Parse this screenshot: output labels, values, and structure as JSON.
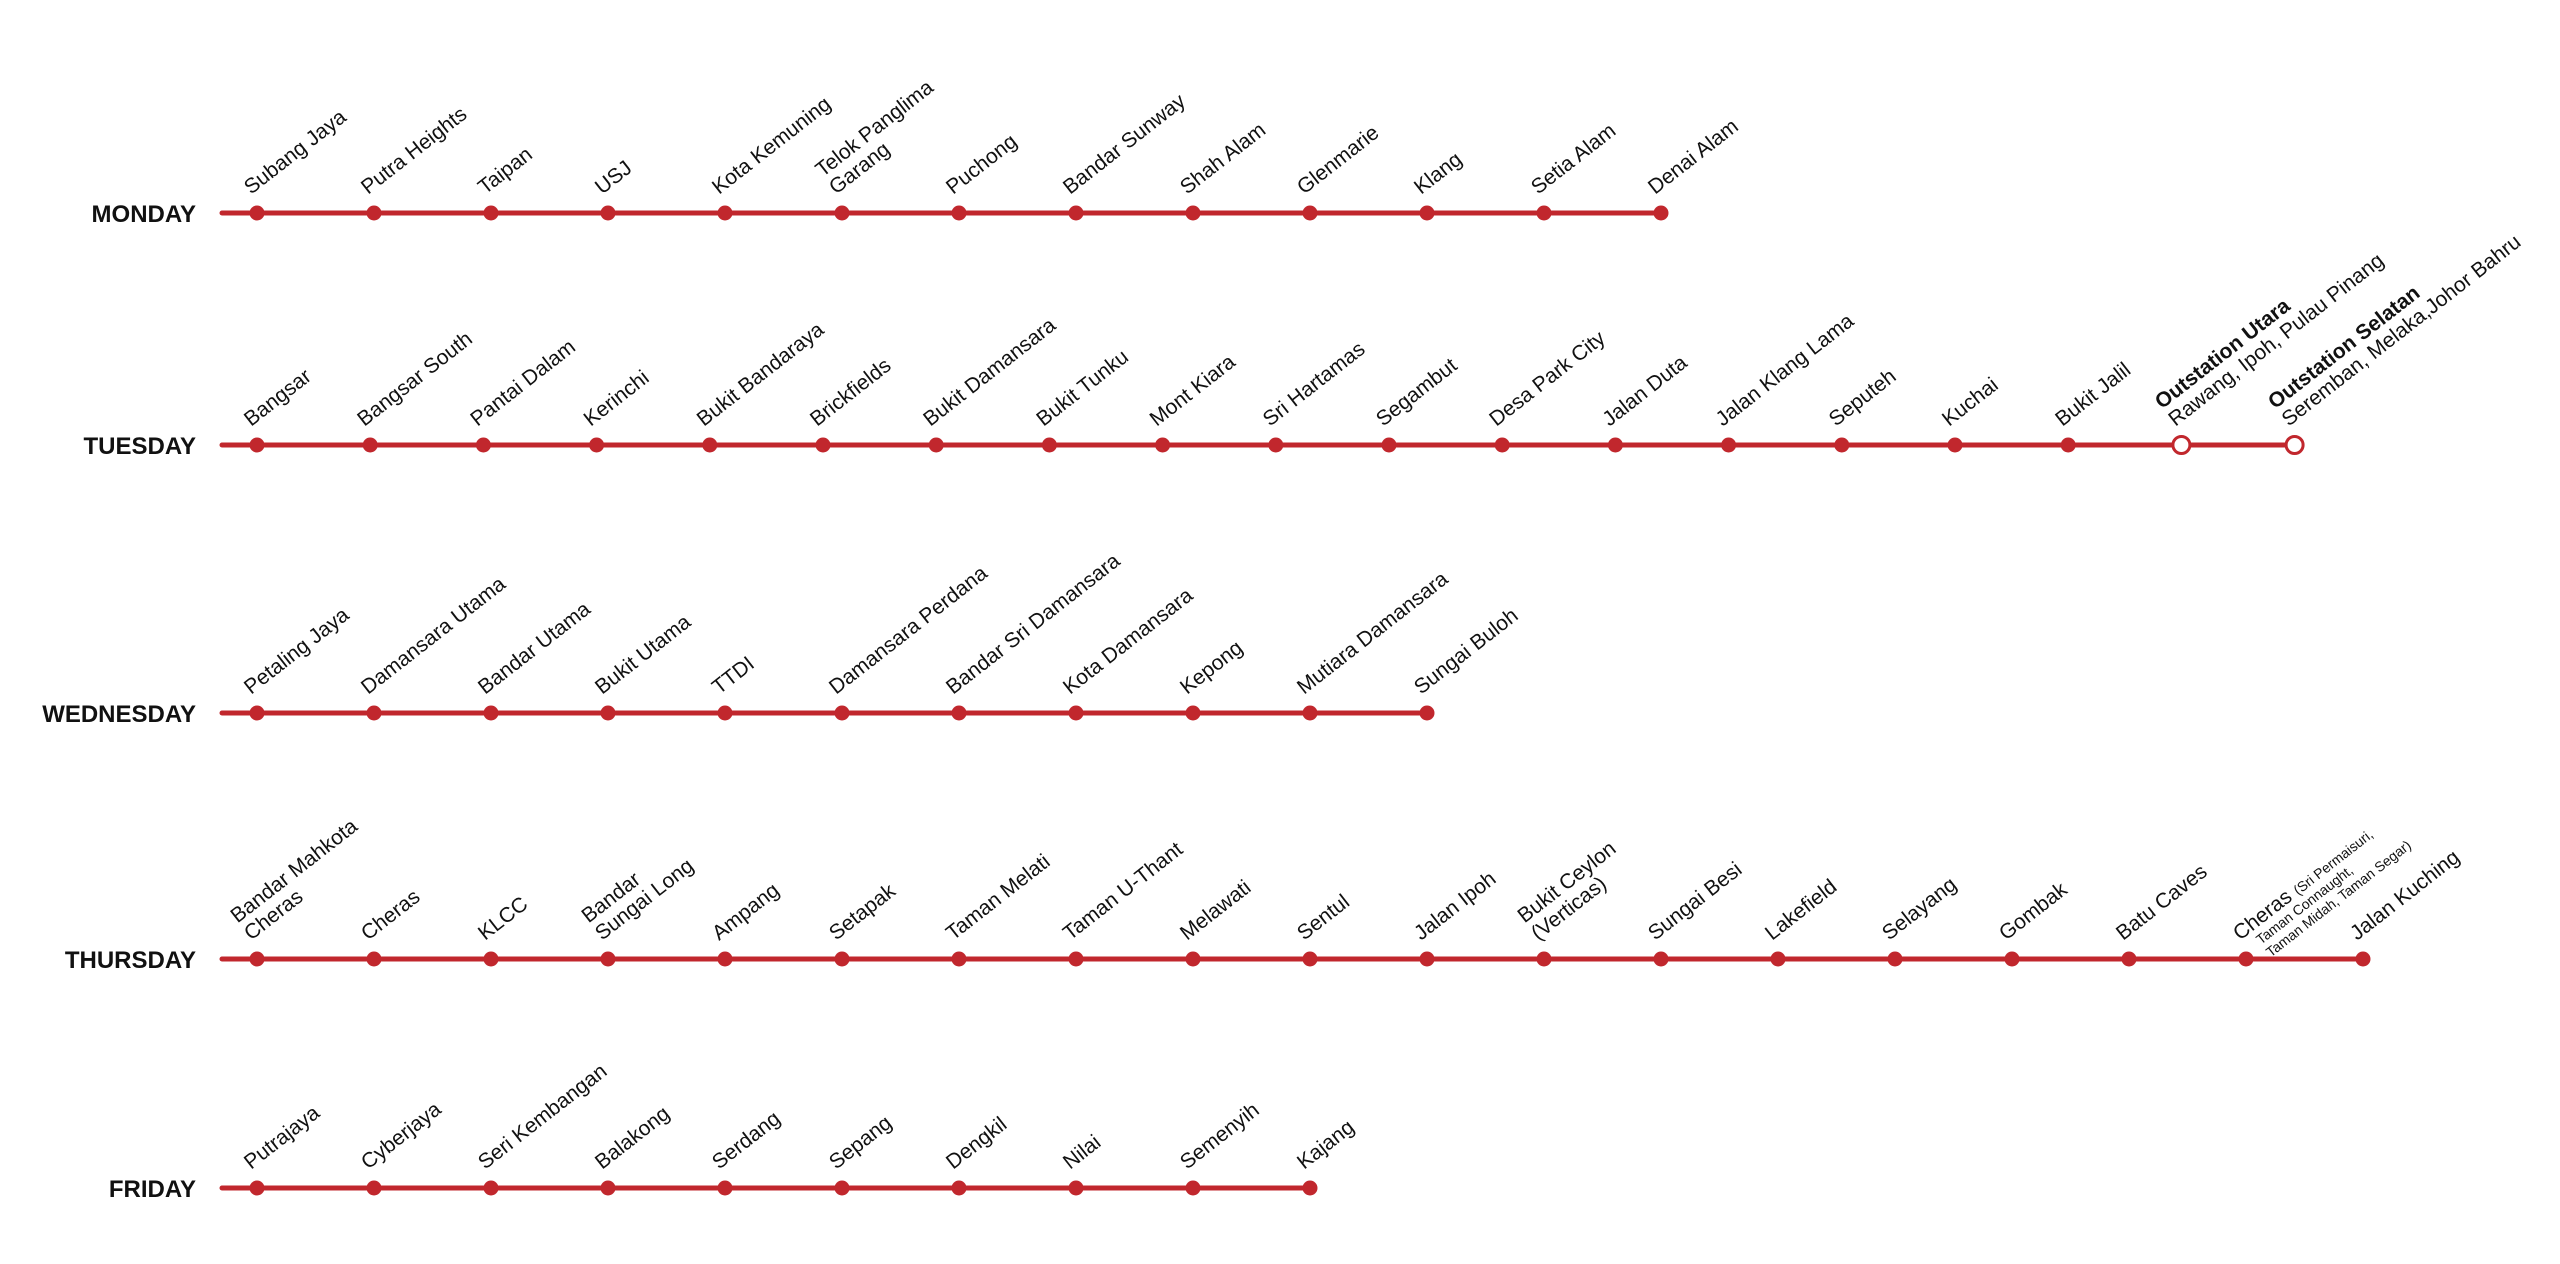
{
  "colors": {
    "line": "#c1272d",
    "text": "#111111",
    "open_stop_fill": "#ffffff"
  },
  "routes": [
    {
      "day": "MONDAY",
      "stops": [
        {
          "lines": [
            "Subang Jaya"
          ]
        },
        {
          "lines": [
            "Putra Heights"
          ]
        },
        {
          "lines": [
            "Taipan"
          ]
        },
        {
          "lines": [
            "USJ"
          ]
        },
        {
          "lines": [
            "Kota Kemuning"
          ]
        },
        {
          "lines": [
            "Telok Panglima",
            "Garang"
          ]
        },
        {
          "lines": [
            "Puchong"
          ]
        },
        {
          "lines": [
            "Bandar Sunway"
          ]
        },
        {
          "lines": [
            "Shah Alam"
          ]
        },
        {
          "lines": [
            "Glenmarie"
          ]
        },
        {
          "lines": [
            "Klang"
          ]
        },
        {
          "lines": [
            "Setia Alam"
          ]
        },
        {
          "lines": [
            "Denai Alam"
          ]
        }
      ]
    },
    {
      "day": "TUESDAY",
      "stops": [
        {
          "lines": [
            "Bangsar"
          ]
        },
        {
          "lines": [
            "Bangsar South"
          ]
        },
        {
          "lines": [
            "Pantai Dalam"
          ]
        },
        {
          "lines": [
            "Kerinchi"
          ]
        },
        {
          "lines": [
            "Bukit Bandaraya"
          ]
        },
        {
          "lines": [
            "Brickfields"
          ]
        },
        {
          "lines": [
            "Bukit Damansara"
          ]
        },
        {
          "lines": [
            "Bukit Tunku"
          ]
        },
        {
          "lines": [
            "Mont Kiara"
          ]
        },
        {
          "lines": [
            "Sri Hartamas"
          ]
        },
        {
          "lines": [
            "Segambut"
          ]
        },
        {
          "lines": [
            "Desa Park City"
          ]
        },
        {
          "lines": [
            "Jalan Duta"
          ]
        },
        {
          "lines": [
            "Jalan Klang Lama"
          ]
        },
        {
          "lines": [
            "Seputeh"
          ]
        },
        {
          "lines": [
            "Kuchai"
          ]
        },
        {
          "lines": [
            "Bukit Jalil"
          ]
        },
        {
          "lines": [
            "Outstation Utara",
            "Rawang, Ipoh, Pulau Pinang"
          ],
          "bold_first": true,
          "open": true
        },
        {
          "lines": [
            "Outstation Selatan",
            "Seremban, Melaka,Johor Bahru"
          ],
          "bold_first": true,
          "open": true
        }
      ]
    },
    {
      "day": "WEDNESDAY",
      "stops": [
        {
          "lines": [
            "Petaling Jaya"
          ]
        },
        {
          "lines": [
            "Damansara Utama"
          ]
        },
        {
          "lines": [
            "Bandar Utama"
          ]
        },
        {
          "lines": [
            "Bukit Utama"
          ]
        },
        {
          "lines": [
            "TTDI"
          ]
        },
        {
          "lines": [
            "Damansara Perdana"
          ]
        },
        {
          "lines": [
            "Bandar Sri Damansara"
          ]
        },
        {
          "lines": [
            "Kota Damansara"
          ]
        },
        {
          "lines": [
            "Kepong"
          ]
        },
        {
          "lines": [
            "Mutiara Damansara"
          ]
        },
        {
          "lines": [
            "Sungai Buloh"
          ]
        }
      ]
    },
    {
      "day": "THURSDAY",
      "stops": [
        {
          "lines": [
            "Bandar Mahkota",
            "Cheras"
          ]
        },
        {
          "lines": [
            "Cheras"
          ]
        },
        {
          "lines": [
            "KLCC"
          ]
        },
        {
          "lines": [
            "Bandar",
            "Sungai Long"
          ]
        },
        {
          "lines": [
            "Ampang"
          ]
        },
        {
          "lines": [
            "Setapak"
          ]
        },
        {
          "lines": [
            "Taman Melati"
          ]
        },
        {
          "lines": [
            "Taman U-Thant"
          ]
        },
        {
          "lines": [
            "Melawati"
          ]
        },
        {
          "lines": [
            "Sentul"
          ]
        },
        {
          "lines": [
            "Jalan Ipoh"
          ]
        },
        {
          "lines": [
            "Bukit Ceylon",
            "(Verticas)"
          ]
        },
        {
          "lines": [
            "Sungai Besi"
          ]
        },
        {
          "lines": [
            "Lakefield"
          ]
        },
        {
          "lines": [
            "Selayang"
          ]
        },
        {
          "lines": [
            "Gombak"
          ]
        },
        {
          "lines": [
            "Batu Caves"
          ]
        },
        {
          "lines": [
            "Cheras"
          ],
          "note_lines": [
            "(Sri Permaisuri,",
            "Taman Connaught,",
            "Taman Midah, Taman Segar)"
          ]
        },
        {
          "lines": [
            "Jalan Kuching"
          ]
        }
      ]
    },
    {
      "day": "FRIDAY",
      "stops": [
        {
          "lines": [
            "Putrajaya"
          ]
        },
        {
          "lines": [
            "Cyberjaya"
          ]
        },
        {
          "lines": [
            "Seri Kembangan"
          ]
        },
        {
          "lines": [
            "Balakong"
          ]
        },
        {
          "lines": [
            "Serdang"
          ]
        },
        {
          "lines": [
            "Sepang"
          ]
        },
        {
          "lines": [
            "Dengkil"
          ]
        },
        {
          "lines": [
            "Nilai"
          ]
        },
        {
          "lines": [
            "Semenyih"
          ]
        },
        {
          "lines": [
            "Kajang"
          ]
        }
      ]
    }
  ]
}
